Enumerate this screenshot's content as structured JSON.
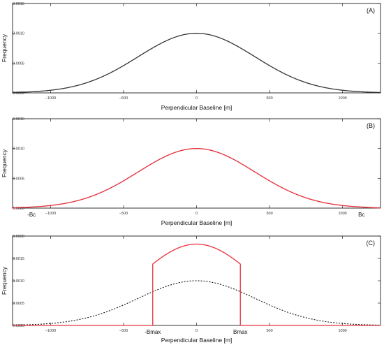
{
  "chart_data": [
    {
      "type": "line",
      "panel_label": "(A)",
      "xlabel": "Perpendicular Baseline [m]",
      "ylabel": "Frequency",
      "xlim": [
        -1260,
        1260
      ],
      "ylim": [
        0,
        0.0015
      ],
      "x_ticks": [
        -1000,
        -500,
        0,
        500,
        1000
      ],
      "x_tick_labels": [
        "−1000",
        "−500",
        "0",
        "500",
        "1000"
      ],
      "y_ticks": [
        0,
        0.0005,
        0.001,
        0.0015
      ],
      "y_tick_labels": [
        "0.0000",
        "0.0005",
        "0.0010",
        "0.0015"
      ],
      "annotations": [],
      "series": [
        {
          "kind": "gaussian",
          "mean": 0,
          "sigma": 400,
          "peak": 0.001,
          "color": "#333333",
          "style": "solid"
        }
      ]
    },
    {
      "type": "line",
      "panel_label": "(B)",
      "xlabel": "Perpendicular Baseline [m]",
      "ylabel": "Frequency",
      "xlim": [
        -1260,
        1260
      ],
      "ylim": [
        0,
        0.0015
      ],
      "x_ticks": [
        -1000,
        -500,
        0,
        500,
        1000
      ],
      "x_tick_labels": [
        "−1000",
        "−500",
        "0",
        "500",
        "1000"
      ],
      "y_ticks": [
        0,
        0.0005,
        0.001,
        0.0015
      ],
      "y_tick_labels": [
        "0.0000",
        "0.0005",
        "0.0010",
        "0.0015"
      ],
      "annotations": [
        {
          "text": "-Bc",
          "x": -1130
        },
        {
          "text": "Bc",
          "x": 1130
        }
      ],
      "series": [
        {
          "kind": "gaussian",
          "mean": 0,
          "sigma": 400,
          "peak": 0.001,
          "color": "#333333",
          "style": "dotted"
        },
        {
          "kind": "gaussian",
          "mean": 0,
          "sigma": 400,
          "peak": 0.001,
          "color": "#e8303a",
          "style": "solid",
          "range": [
            -1130,
            1130
          ]
        }
      ]
    },
    {
      "type": "line",
      "panel_label": "(C)",
      "xlabel": "Perpendicular Baseline [m]",
      "ylabel": "Frequency",
      "xlim": [
        -1260,
        1260
      ],
      "ylim": [
        0,
        0.002
      ],
      "x_ticks": [
        -1000,
        -500,
        0,
        500,
        1000
      ],
      "x_tick_labels": [
        "−1000",
        "−500",
        "0",
        "500",
        "1000"
      ],
      "y_ticks": [
        0,
        0.0005,
        0.001,
        0.0015,
        0.002
      ],
      "y_tick_labels": [
        "0.0000",
        "0.0005",
        "0.0010",
        "0.0015",
        "0.0020"
      ],
      "annotations": [
        {
          "text": "-Bmax",
          "x": -300
        },
        {
          "text": "Bmax",
          "x": 300
        }
      ],
      "series": [
        {
          "kind": "gaussian",
          "mean": 0,
          "sigma": 400,
          "peak": 0.001,
          "color": "#111111",
          "style": "dotted"
        },
        {
          "kind": "truncated_gaussian",
          "mean": 0,
          "sigma": 400,
          "peak": 0.00182,
          "color": "#e8303a",
          "style": "solid",
          "range": [
            -300,
            300
          ]
        }
      ]
    }
  ]
}
